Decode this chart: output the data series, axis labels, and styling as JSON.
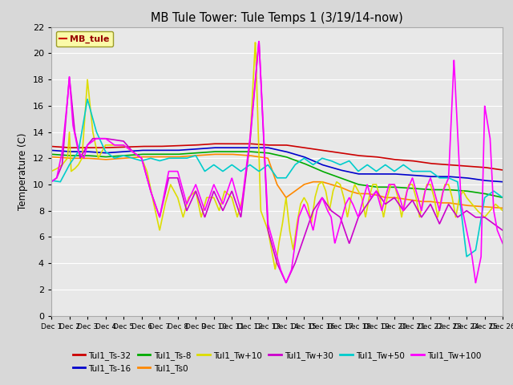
{
  "title": "MB Tule Tower: Tule Temps 1 (3/19/14-now)",
  "ylabel": "Temperature (C)",
  "legend_box_label": "MB_tule",
  "ylim": [
    0,
    22
  ],
  "yticks": [
    0,
    2,
    4,
    6,
    8,
    10,
    12,
    14,
    16,
    18,
    20,
    22
  ],
  "background_color": "#d8d8d8",
  "plot_bg_color": "#e8e8e8",
  "grid_color": "#ffffff",
  "series": {
    "Tul1_Ts-32": {
      "color": "#cc0000",
      "px": [
        0,
        1,
        2,
        3,
        4,
        5,
        6,
        7,
        8,
        9,
        10,
        11,
        12,
        13,
        14,
        15,
        16,
        17,
        18,
        19,
        20,
        21,
        22,
        23,
        24,
        25
      ],
      "py": [
        12.9,
        12.8,
        12.8,
        12.8,
        12.85,
        12.9,
        12.9,
        12.95,
        13.0,
        13.1,
        13.1,
        13.1,
        13.0,
        13.0,
        12.8,
        12.6,
        12.4,
        12.2,
        12.1,
        11.9,
        11.8,
        11.6,
        11.5,
        11.4,
        11.3,
        11.1
      ]
    },
    "Tul1_Ts-16": {
      "color": "#0000cc",
      "px": [
        0,
        1,
        2,
        3,
        4,
        5,
        6,
        7,
        8,
        9,
        10,
        11,
        12,
        13,
        14,
        15,
        16,
        17,
        18,
        19,
        20,
        21,
        22,
        23,
        24,
        25
      ],
      "py": [
        12.6,
        12.5,
        12.5,
        12.4,
        12.5,
        12.6,
        12.6,
        12.6,
        12.7,
        12.8,
        12.8,
        12.8,
        12.8,
        12.5,
        12.1,
        11.5,
        11.1,
        10.8,
        10.8,
        10.8,
        10.7,
        10.6,
        10.6,
        10.5,
        10.3,
        10.2
      ]
    },
    "Tul1_Ts-8": {
      "color": "#00aa00",
      "px": [
        0,
        1,
        2,
        3,
        4,
        5,
        6,
        7,
        8,
        9,
        10,
        11,
        12,
        13,
        14,
        15,
        16,
        17,
        18,
        19,
        20,
        21,
        22,
        23,
        24,
        25
      ],
      "py": [
        12.3,
        12.2,
        12.2,
        12.1,
        12.2,
        12.3,
        12.3,
        12.3,
        12.4,
        12.5,
        12.5,
        12.5,
        12.4,
        12.1,
        11.6,
        11.0,
        10.5,
        10.0,
        9.8,
        9.8,
        9.7,
        9.6,
        9.6,
        9.5,
        9.3,
        9.0
      ]
    },
    "Tul1_Ts0": {
      "color": "#ff8800",
      "px": [
        0,
        1,
        2,
        3,
        4,
        5,
        6,
        7,
        8,
        9,
        10,
        11,
        12,
        12.5,
        13,
        13.5,
        14,
        14.5,
        15,
        15.5,
        16,
        16.5,
        17,
        17.5,
        18,
        18.5,
        19,
        19.5,
        20,
        20.5,
        21,
        21.5,
        22,
        22.5,
        23,
        24,
        25
      ],
      "py": [
        12.1,
        12.0,
        12.0,
        11.9,
        12.0,
        12.1,
        12.1,
        12.1,
        12.2,
        12.3,
        12.3,
        12.2,
        12.0,
        10.0,
        9.0,
        9.5,
        10.0,
        10.2,
        10.2,
        10.0,
        9.8,
        9.5,
        9.3,
        9.3,
        9.2,
        9.0,
        9.0,
        8.9,
        8.8,
        8.7,
        8.7,
        8.6,
        8.6,
        8.5,
        8.4,
        8.3,
        8.2
      ]
    },
    "Tul1_Tw+10": {
      "color": "#dddd00",
      "px": [
        0,
        0.3,
        0.6,
        0.9,
        1.0,
        1.1,
        1.3,
        1.5,
        1.7,
        2.0,
        2.3,
        2.6,
        3.0,
        4.0,
        4.5,
        5.0,
        5.3,
        5.6,
        6.0,
        6.3,
        6.6,
        7.0,
        7.3,
        7.6,
        8.0,
        8.3,
        8.6,
        9.0,
        9.3,
        9.6,
        10.0,
        10.3,
        10.6,
        11.0,
        11.3,
        11.6,
        12.0,
        12.2,
        12.4,
        12.6,
        12.8,
        13.0,
        13.2,
        13.4,
        13.6,
        13.8,
        14.0,
        14.2,
        14.4,
        14.6,
        14.8,
        15.0,
        15.2,
        15.4,
        15.6,
        15.8,
        16.0,
        16.2,
        16.4,
        16.6,
        16.8,
        17.0,
        17.2,
        17.4,
        17.6,
        17.8,
        18.0,
        18.2,
        18.4,
        18.6,
        18.8,
        19.0,
        19.2,
        19.4,
        19.6,
        19.8,
        20.0,
        20.2,
        20.4,
        20.6,
        20.8,
        21.0,
        21.2,
        21.4,
        21.6,
        21.8,
        22.0,
        22.2,
        22.4,
        22.6,
        22.8,
        23.0,
        23.3,
        23.6,
        24.0,
        24.3,
        24.6,
        25.0
      ],
      "py": [
        11.0,
        11.2,
        11.5,
        12.0,
        14.0,
        11.0,
        11.2,
        11.5,
        12.0,
        18.0,
        14.0,
        12.0,
        13.0,
        13.0,
        12.5,
        12.0,
        11.0,
        9.0,
        6.5,
        8.5,
        10.0,
        9.0,
        7.5,
        9.0,
        9.5,
        7.5,
        9.0,
        9.0,
        8.0,
        9.5,
        9.0,
        7.5,
        9.0,
        13.1,
        21.0,
        8.0,
        6.5,
        5.0,
        3.5,
        5.5,
        7.0,
        9.0,
        6.5,
        5.0,
        7.0,
        8.5,
        9.0,
        8.5,
        7.0,
        9.0,
        10.0,
        10.2,
        9.5,
        8.0,
        9.5,
        10.2,
        10.0,
        9.0,
        7.5,
        9.0,
        10.0,
        9.5,
        9.0,
        7.5,
        9.0,
        10.0,
        10.0,
        9.0,
        7.5,
        9.0,
        10.0,
        10.0,
        9.0,
        7.5,
        9.0,
        10.0,
        10.0,
        9.0,
        7.5,
        9.0,
        10.0,
        10.0,
        9.0,
        7.5,
        9.0,
        10.0,
        10.0,
        9.0,
        7.5,
        9.0,
        9.5,
        9.0,
        8.5,
        8.0,
        7.5,
        8.0,
        8.5,
        8.0
      ]
    },
    "Tul1_Tw+30": {
      "color": "#cc00cc",
      "px": [
        0,
        0.3,
        0.6,
        1.0,
        1.3,
        1.6,
        2.0,
        2.3,
        3.0,
        4.0,
        4.5,
        5.0,
        5.5,
        6.0,
        6.5,
        7.0,
        7.5,
        8.0,
        8.5,
        9.0,
        9.5,
        10.0,
        10.5,
        11.0,
        11.5,
        12.0,
        12.5,
        13.0,
        13.5,
        14.0,
        14.5,
        15.0,
        15.5,
        16.0,
        16.5,
        17.0,
        17.5,
        18.0,
        18.5,
        19.0,
        19.5,
        20.0,
        20.5,
        21.0,
        21.5,
        22.0,
        22.5,
        23.0,
        23.5,
        24.0,
        24.5,
        25.0
      ],
      "py": [
        10.2,
        10.5,
        11.5,
        18.2,
        14.0,
        12.0,
        13.0,
        13.5,
        13.5,
        13.3,
        12.5,
        12.0,
        9.5,
        7.5,
        10.5,
        10.5,
        8.0,
        9.5,
        7.5,
        9.5,
        8.0,
        9.5,
        7.5,
        13.2,
        21.0,
        6.5,
        4.0,
        2.5,
        4.0,
        6.0,
        8.0,
        9.0,
        8.0,
        7.5,
        5.5,
        7.5,
        8.5,
        9.5,
        8.5,
        9.0,
        8.0,
        8.8,
        7.5,
        8.5,
        7.0,
        8.5,
        7.5,
        8.0,
        7.5,
        7.5,
        7.0,
        6.5
      ]
    },
    "Tul1_Tw+50": {
      "color": "#00cccc",
      "px": [
        0,
        0.5,
        1.0,
        1.5,
        2.0,
        2.5,
        3.0,
        3.5,
        4.0,
        4.5,
        5.0,
        5.5,
        6.0,
        6.5,
        7.0,
        7.5,
        8.0,
        8.5,
        9.0,
        9.5,
        10.0,
        10.5,
        11.0,
        11.5,
        12.0,
        12.5,
        13.0,
        13.5,
        14.0,
        14.5,
        15.0,
        15.5,
        16.0,
        16.5,
        17.0,
        17.5,
        18.0,
        18.5,
        19.0,
        19.5,
        20.0,
        20.5,
        21.0,
        21.5,
        22.0,
        22.5,
        23.0,
        23.5,
        24.0,
        24.5,
        25.0
      ],
      "py": [
        10.3,
        10.2,
        11.5,
        12.5,
        16.5,
        14.0,
        12.5,
        12.0,
        12.2,
        12.0,
        11.8,
        12.0,
        11.8,
        12.0,
        12.0,
        12.0,
        12.2,
        11.0,
        11.5,
        11.0,
        11.5,
        11.0,
        11.5,
        11.0,
        11.5,
        10.5,
        10.5,
        11.5,
        12.0,
        11.5,
        12.0,
        11.8,
        11.5,
        11.8,
        11.0,
        11.5,
        11.0,
        11.5,
        11.0,
        11.5,
        11.0,
        11.0,
        11.0,
        10.5,
        10.5,
        10.2,
        4.5,
        5.0,
        9.0,
        9.5,
        9.0
      ]
    },
    "Tul1_Tw+100": {
      "color": "#ff00ff",
      "px": [
        0,
        0.3,
        0.6,
        0.9,
        1.0,
        1.2,
        1.5,
        1.8,
        2.0,
        2.5,
        3.0,
        3.5,
        4.0,
        4.5,
        5.0,
        5.5,
        6.0,
        6.5,
        7.0,
        7.5,
        8.0,
        8.5,
        9.0,
        9.5,
        10.0,
        10.5,
        11.0,
        11.5,
        12.0,
        12.3,
        12.5,
        12.7,
        13.0,
        13.3,
        13.5,
        13.7,
        14.0,
        14.3,
        14.5,
        14.7,
        15.0,
        15.3,
        15.5,
        15.7,
        16.0,
        16.3,
        16.5,
        16.7,
        17.0,
        17.3,
        17.5,
        17.7,
        18.0,
        18.3,
        18.5,
        18.7,
        19.0,
        19.3,
        19.5,
        19.7,
        20.0,
        20.3,
        20.5,
        20.7,
        21.0,
        21.3,
        21.5,
        21.7,
        22.0,
        22.3,
        22.5,
        22.7,
        23.0,
        23.3,
        23.5,
        23.8,
        24.0,
        24.3,
        24.5,
        24.7,
        25.0
      ],
      "py": [
        10.2,
        10.5,
        12.5,
        16.5,
        18.2,
        14.5,
        12.5,
        12.0,
        13.0,
        13.5,
        13.5,
        13.0,
        13.0,
        12.5,
        12.0,
        9.5,
        7.5,
        11.0,
        11.0,
        8.5,
        10.0,
        8.0,
        10.0,
        8.5,
        10.5,
        8.0,
        13.5,
        21.0,
        7.0,
        5.5,
        4.5,
        3.5,
        2.5,
        3.5,
        5.5,
        7.5,
        8.5,
        7.5,
        6.5,
        8.0,
        9.0,
        8.0,
        7.5,
        5.5,
        7.0,
        8.5,
        9.0,
        8.5,
        7.5,
        9.0,
        10.0,
        9.0,
        9.5,
        8.0,
        9.0,
        10.0,
        10.0,
        9.0,
        8.0,
        9.5,
        10.5,
        9.0,
        8.0,
        9.5,
        10.5,
        9.0,
        8.0,
        9.5,
        10.5,
        19.5,
        14.0,
        8.5,
        6.5,
        4.5,
        2.5,
        4.5,
        16.0,
        13.5,
        8.0,
        6.5,
        5.5
      ]
    }
  },
  "legend_entries": [
    {
      "label": "Tul1_Ts-32",
      "color": "#cc0000"
    },
    {
      "label": "Tul1_Ts-16",
      "color": "#0000cc"
    },
    {
      "label": "Tul1_Ts-8",
      "color": "#00aa00"
    },
    {
      "label": "Tul1_Ts0",
      "color": "#ff8800"
    },
    {
      "label": "Tul1_Tw+10",
      "color": "#dddd00"
    },
    {
      "label": "Tul1_Tw+30",
      "color": "#cc00cc"
    },
    {
      "label": "Tul1_Tw+50",
      "color": "#00cccc"
    },
    {
      "label": "Tul1_Tw+100",
      "color": "#ff00ff"
    }
  ]
}
